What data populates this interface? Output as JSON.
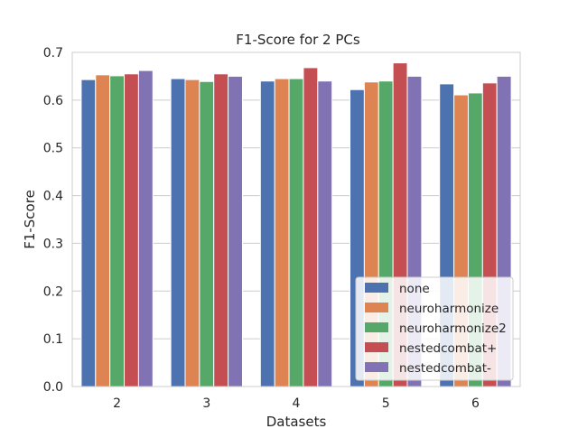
{
  "chart_data": {
    "type": "bar",
    "title": "F1-Score for 2 PCs",
    "xlabel": "Datasets",
    "ylabel": "F1-Score",
    "categories": [
      "2",
      "3",
      "4",
      "5",
      "6"
    ],
    "ylim": [
      0,
      0.7
    ],
    "yticks": [
      "0.0",
      "0.1",
      "0.2",
      "0.3",
      "0.4",
      "0.5",
      "0.6",
      "0.7"
    ],
    "grid": "horizontal",
    "legend_position": "lower-right",
    "series": [
      {
        "name": "none",
        "color": "#4c72b0",
        "values": [
          0.643,
          0.645,
          0.64,
          0.622,
          0.634
        ]
      },
      {
        "name": "neuroharmonize",
        "color": "#dd8452",
        "values": [
          0.653,
          0.643,
          0.645,
          0.638,
          0.611
        ]
      },
      {
        "name": "neuroharmonize2",
        "color": "#55a868",
        "values": [
          0.651,
          0.639,
          0.645,
          0.64,
          0.615
        ]
      },
      {
        "name": "nestedcombat+",
        "color": "#c44e52",
        "values": [
          0.655,
          0.655,
          0.668,
          0.678,
          0.636
        ]
      },
      {
        "name": "nestedcombat-",
        "color": "#8172b3",
        "values": [
          0.662,
          0.65,
          0.64,
          0.65,
          0.65
        ]
      }
    ]
  }
}
